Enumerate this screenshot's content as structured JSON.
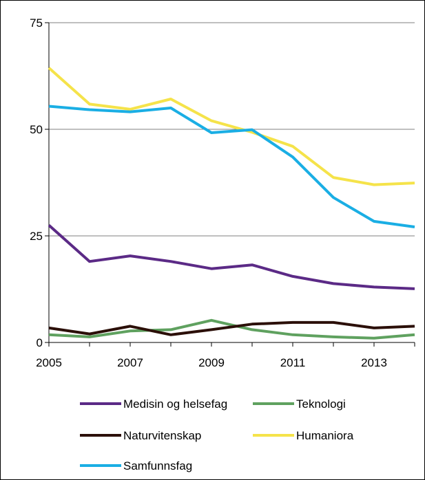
{
  "chart_data": {
    "type": "line",
    "title": "",
    "xlabel": "",
    "ylabel": "",
    "x": [
      2005,
      2006,
      2007,
      2008,
      2009,
      2010,
      2011,
      2012,
      2013,
      2014
    ],
    "xticks": [
      "2005",
      "2007",
      "2009",
      "2011",
      "2013"
    ],
    "yticks": [
      "0",
      "25",
      "50",
      "75"
    ],
    "ylim": [
      0,
      75
    ],
    "grid": "horizontal",
    "legend_position": "bottom",
    "series": [
      {
        "name": "Medisin og helsefag",
        "color": "#5b2a86",
        "values": [
          27.5,
          19.0,
          20.3,
          19.0,
          17.3,
          18.2,
          15.5,
          13.8,
          13.0,
          12.6
        ]
      },
      {
        "name": "Teknologi",
        "color": "#5fa15f",
        "values": [
          1.8,
          1.3,
          2.7,
          3.0,
          5.2,
          3.0,
          1.8,
          1.3,
          1.0,
          1.8
        ]
      },
      {
        "name": "Naturvitenskap",
        "color": "#2b0f08",
        "values": [
          3.4,
          2.0,
          3.8,
          1.8,
          3.0,
          4.3,
          4.7,
          4.7,
          3.4,
          3.8
        ]
      },
      {
        "name": "Humaniora",
        "color": "#f5e34a",
        "values": [
          64.4,
          55.9,
          54.7,
          57.1,
          52.0,
          49.3,
          46.0,
          38.7,
          37.0,
          37.4
        ]
      },
      {
        "name": "Samfunnsfag",
        "color": "#1aaee4",
        "values": [
          55.4,
          54.6,
          54.1,
          55.0,
          49.2,
          49.9,
          43.5,
          34.0,
          28.4,
          27.1
        ]
      }
    ]
  }
}
